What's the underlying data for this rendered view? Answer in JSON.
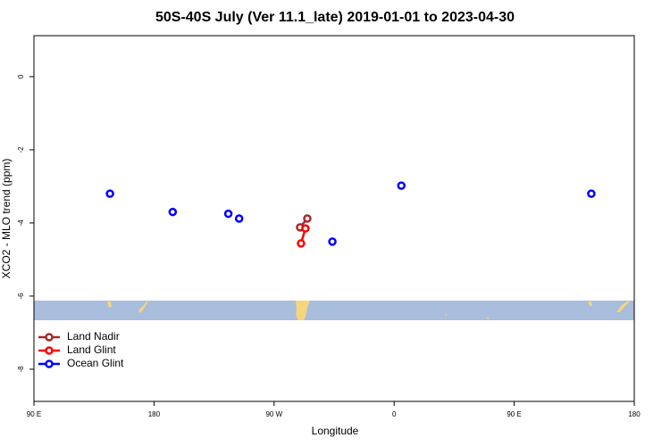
{
  "chart_data": {
    "type": "scatter",
    "title": "50S-40S July (Ver 11.1_late)   2019-01-01 to 2023-04-30",
    "x_label": "Longitude",
    "y_label": "XCO2 - MLO trend (ppm)",
    "xlim": [
      90,
      540
    ],
    "ylim": [
      -8.88,
      1.12
    ],
    "xticks": [
      {
        "value": 90,
        "label": "90 E"
      },
      {
        "value": 180,
        "label": "180"
      },
      {
        "value": 270,
        "label": "90 W"
      },
      {
        "value": 360,
        "label": "0"
      },
      {
        "value": 450,
        "label": "90 E"
      },
      {
        "value": 540,
        "label": "180"
      }
    ],
    "yticks": [
      0,
      -2,
      -4,
      -6,
      -8
    ],
    "legend": "bottom-left",
    "series": [
      {
        "name": "Land Nadir",
        "color": "#a52a2a",
        "connect": true,
        "x": [
          294.9,
          289.5
        ],
        "values": [
          -3.88,
          -4.12
        ]
      },
      {
        "name": "Land Glint",
        "color": "#ff0000",
        "connect": true,
        "x": [
          293.5,
          290.2
        ],
        "values": [
          -4.15,
          -4.56
        ]
      },
      {
        "name": "Ocean Glint",
        "color": "#0000ff",
        "connect": false,
        "x": [
          147,
          194,
          235.7,
          243.8,
          313.7,
          365.4,
          507.8
        ],
        "values": [
          -3.2,
          -3.7,
          -3.75,
          -3.88,
          -4.51,
          -2.98,
          -3.2
        ]
      }
    ]
  }
}
